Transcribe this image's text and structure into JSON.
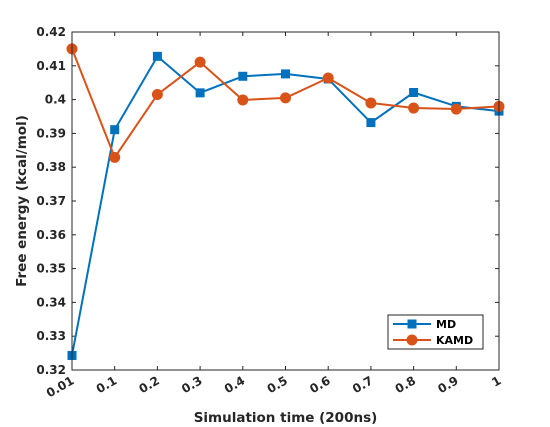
{
  "chart_data": {
    "type": "line",
    "x_categories": [
      "0.01",
      "0.1",
      "0.2",
      "0.3",
      "0.4",
      "0.5",
      "0.6",
      "0.7",
      "0.8",
      "0.9",
      "1"
    ],
    "xlabel": "Simulation time (200ns)",
    "ylabel": "Free energy (kcal/mol)",
    "ylim": [
      0.32,
      0.42
    ],
    "yticks": [
      "0.32",
      "0.33",
      "0.34",
      "0.35",
      "0.36",
      "0.37",
      "0.38",
      "0.39",
      "0.4",
      "0.41",
      "0.42"
    ],
    "grid": false,
    "legend_position": "bottom-right",
    "series": [
      {
        "name": "MD",
        "color": "#0072BD",
        "marker": "square",
        "values": [
          0.3243,
          0.3911,
          0.4128,
          0.402,
          0.4069,
          0.4076,
          0.4061,
          0.3932,
          0.4021,
          0.398,
          0.3966
        ]
      },
      {
        "name": "KAMD",
        "color": "#D95319",
        "marker": "circle",
        "values": [
          0.415,
          0.3829,
          0.4015,
          0.4111,
          0.3999,
          0.4005,
          0.4064,
          0.399,
          0.3975,
          0.3972,
          0.398
        ]
      }
    ]
  }
}
